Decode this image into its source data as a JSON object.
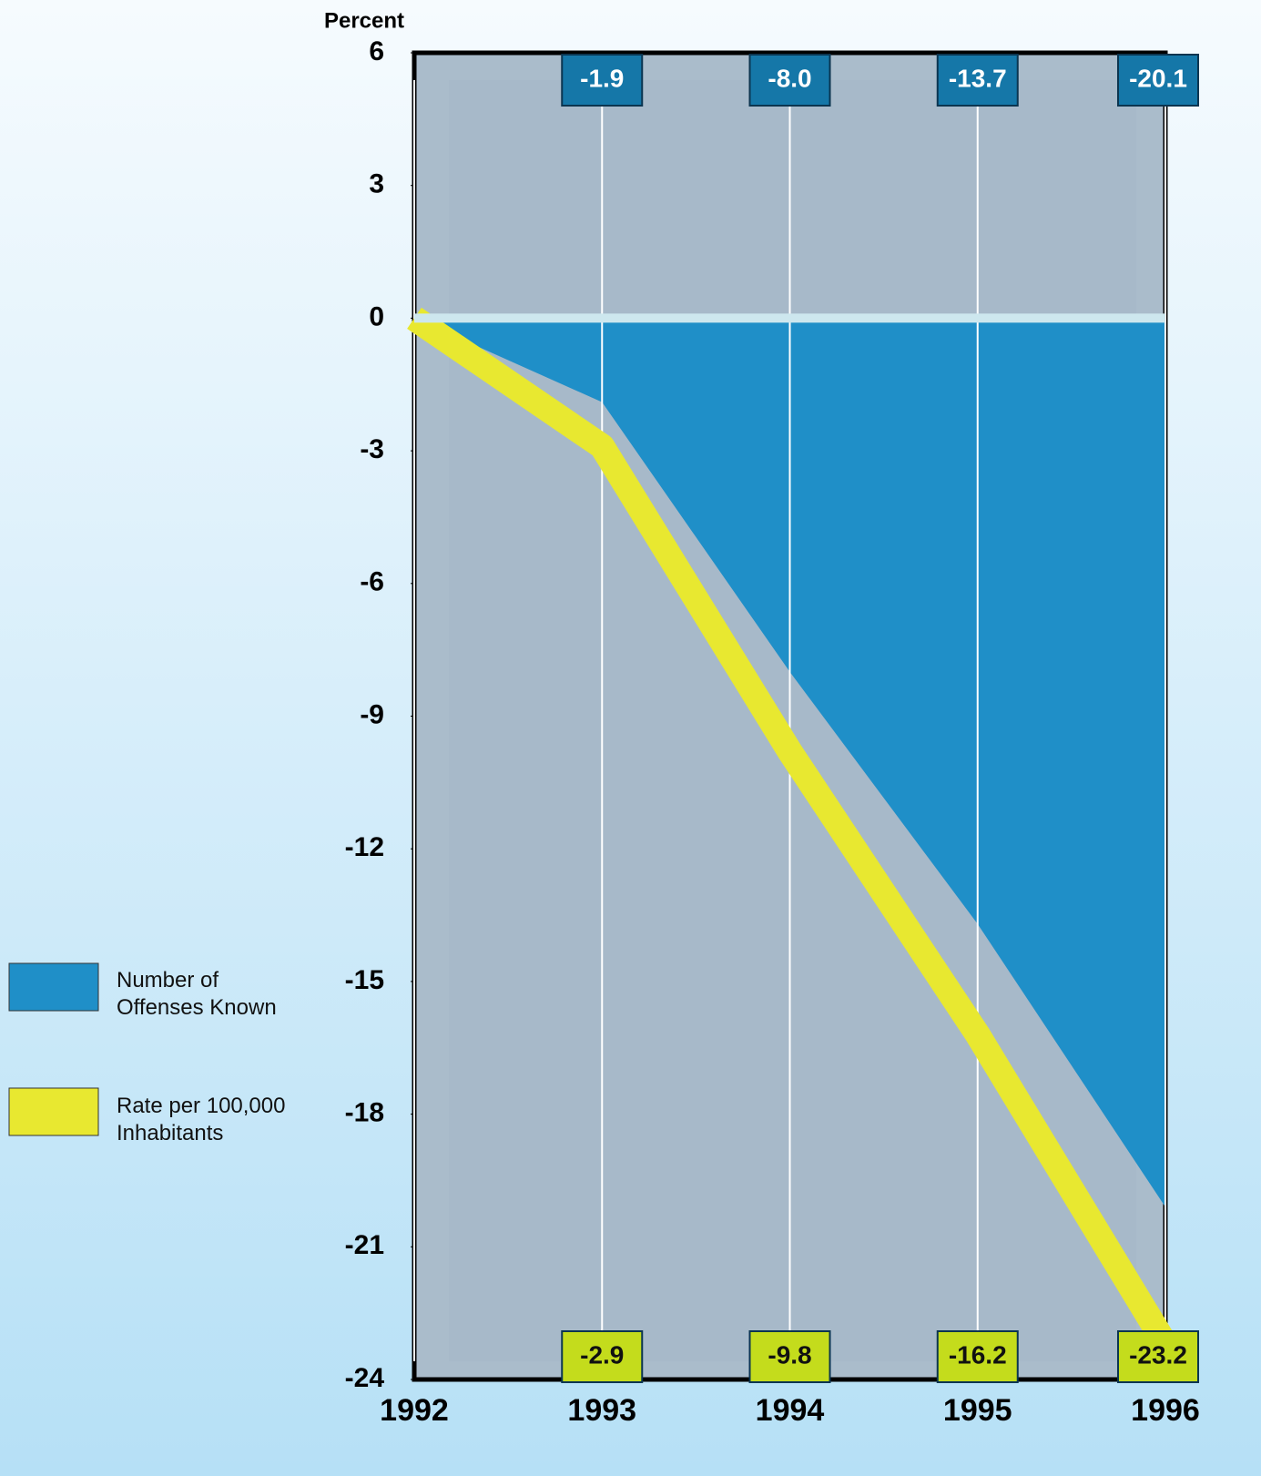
{
  "chart_data": {
    "type": "area-line",
    "y_label": "Percent",
    "x": [
      1992,
      1993,
      1994,
      1995,
      1996
    ],
    "xlim": [
      1992,
      1996
    ],
    "xticks": [
      1992,
      1993,
      1994,
      1995,
      1996
    ],
    "ylim": [
      -24,
      6
    ],
    "yticks": [
      6,
      3,
      0,
      -3,
      -6,
      -9,
      -12,
      -15,
      -18,
      -21,
      -24
    ],
    "grid": true,
    "series": [
      {
        "name": "Number of Offenses Known",
        "color": "#1f8fc8",
        "values": [
          0,
          -1.9,
          -8.0,
          -13.7,
          -20.1
        ],
        "value_labels": [
          null,
          "-1.9",
          "-8.0",
          "-13.7",
          "-20.1"
        ]
      },
      {
        "name": "Rate per 100,000 Inhabitants",
        "color": "#e8e830",
        "values": [
          0,
          -2.9,
          -9.8,
          -16.2,
          -23.2
        ],
        "value_labels": [
          null,
          "-2.9",
          "-9.8",
          "-16.2",
          "-23.2"
        ]
      }
    ]
  }
}
